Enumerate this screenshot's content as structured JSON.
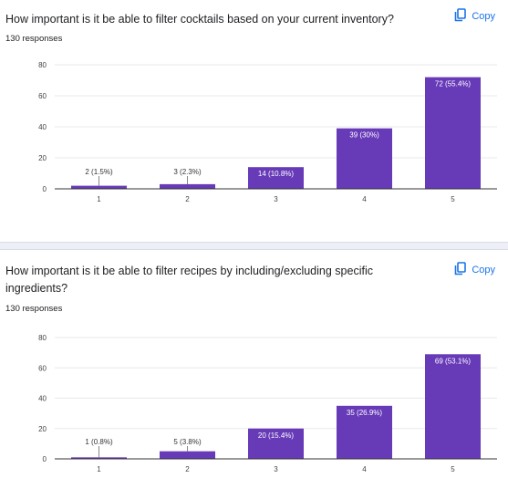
{
  "colors": {
    "bar": "#673ab7",
    "grid": "#e8e8e8",
    "axis": "#333333",
    "link": "#1a73e8"
  },
  "copy_icon": "copy-icon",
  "questions": [
    {
      "title": "How important is it be able to filter cocktails based on your current inventory?",
      "responses": "130 responses",
      "copy_label": "Copy"
    },
    {
      "title": "How important is it be able to filter recipes by including/excluding specific ingredients?",
      "responses": "130 responses",
      "copy_label": "Copy"
    }
  ],
  "chart_data": [
    {
      "type": "bar",
      "categories": [
        "1",
        "2",
        "3",
        "4",
        "5"
      ],
      "values": [
        2,
        3,
        14,
        39,
        72
      ],
      "labels": [
        "2 (1.5%)",
        "3 (2.3%)",
        "14 (10.8%)",
        "39 (30%)",
        "72 (55.4%)"
      ],
      "yticks": [
        0,
        20,
        40,
        60,
        80
      ],
      "ylim": [
        0,
        80
      ],
      "grid": true
    },
    {
      "type": "bar",
      "categories": [
        "1",
        "2",
        "3",
        "4",
        "5"
      ],
      "values": [
        1,
        5,
        20,
        35,
        69
      ],
      "labels": [
        "1 (0.8%)",
        "5 (3.8%)",
        "20 (15.4%)",
        "35 (26.9%)",
        "69 (53.1%)"
      ],
      "yticks": [
        0,
        20,
        40,
        60,
        80
      ],
      "ylim": [
        0,
        80
      ],
      "grid": true
    }
  ]
}
